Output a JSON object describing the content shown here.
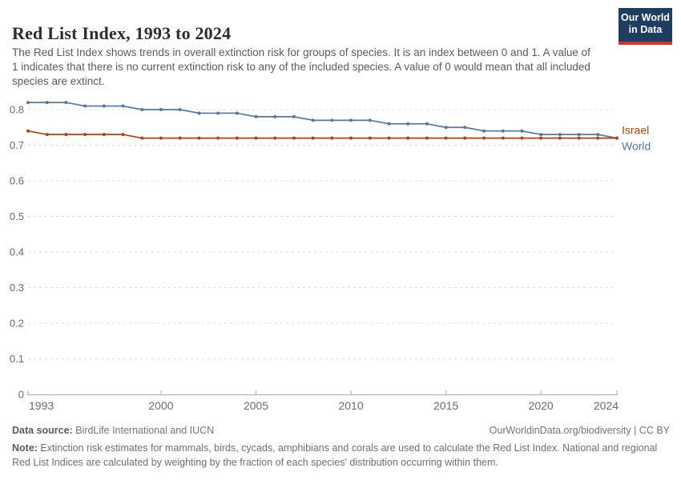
{
  "header": {
    "logo": {
      "line1": "Our World",
      "line2": "in Data"
    }
  },
  "chart_data": {
    "type": "line",
    "title": "Red List Index, 1993 to 2024",
    "subtitle": "The Red List Index shows trends in overall extinction risk for groups of species. It is an index between 0 and 1. A value of 1 indicates that there is no current extinction risk to any of the included species. A value of 0 would mean that all included species are extinct.",
    "xlabel": "",
    "ylabel": "",
    "xlim": [
      1993,
      2024
    ],
    "ylim": [
      0,
      0.85
    ],
    "grid": "horizontal-dashed",
    "legend_position": "right-end-labels",
    "xticks": [
      1993,
      2000,
      2005,
      2010,
      2015,
      2020,
      2024
    ],
    "yticks": [
      0,
      0.1,
      0.2,
      0.3,
      0.4,
      0.5,
      0.6,
      0.7,
      0.8
    ],
    "x": [
      1993,
      1994,
      1995,
      1996,
      1997,
      1998,
      1999,
      2000,
      2001,
      2002,
      2003,
      2004,
      2005,
      2006,
      2007,
      2008,
      2009,
      2010,
      2011,
      2012,
      2013,
      2014,
      2015,
      2016,
      2017,
      2018,
      2019,
      2020,
      2021,
      2022,
      2023,
      2024
    ],
    "series": [
      {
        "name": "Israel",
        "color": "#b5420e",
        "values": [
          0.74,
          0.73,
          0.73,
          0.73,
          0.73,
          0.73,
          0.72,
          0.72,
          0.72,
          0.72,
          0.72,
          0.72,
          0.72,
          0.72,
          0.72,
          0.72,
          0.72,
          0.72,
          0.72,
          0.72,
          0.72,
          0.72,
          0.72,
          0.72,
          0.72,
          0.72,
          0.72,
          0.72,
          0.72,
          0.72,
          0.72,
          0.72
        ]
      },
      {
        "name": "World",
        "color": "#5677a3",
        "values": [
          0.82,
          0.82,
          0.82,
          0.81,
          0.81,
          0.81,
          0.8,
          0.8,
          0.8,
          0.79,
          0.79,
          0.79,
          0.78,
          0.78,
          0.78,
          0.77,
          0.77,
          0.77,
          0.77,
          0.76,
          0.76,
          0.76,
          0.75,
          0.75,
          0.74,
          0.74,
          0.74,
          0.73,
          0.73,
          0.73,
          0.73,
          0.72
        ]
      }
    ]
  },
  "footer": {
    "data_source_label": "Data source:",
    "data_source_value": " BirdLife International and IUCN",
    "link": "OurWorldinData.org/biodiversity | CC BY",
    "note_label": "Note:",
    "note_value": " Extinction risk estimates for mammals, birds, cycads, amphibians and corals are used to calculate the Red List Index. National and regional Red List Indices are calculated by weighting by the fraction of each species' distribution occurring within them."
  }
}
